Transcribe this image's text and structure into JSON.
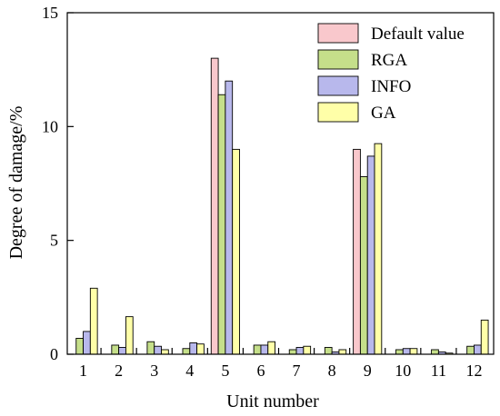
{
  "chart_data": {
    "type": "bar",
    "xlabel": "Unit number",
    "ylabel": "Degree of damage/%",
    "ylim": [
      0,
      15
    ],
    "yticks": [
      0,
      5,
      10,
      15
    ],
    "categories": [
      "1",
      "2",
      "3",
      "4",
      "5",
      "6",
      "7",
      "8",
      "9",
      "10",
      "11",
      "12"
    ],
    "series": [
      {
        "name": "Default value",
        "color": "#f9c8cc",
        "values": [
          0,
          0,
          0,
          0,
          13,
          0,
          0,
          0,
          9,
          0,
          0,
          0
        ]
      },
      {
        "name": "RGA",
        "color": "#c5df8a",
        "values": [
          0.7,
          0.4,
          0.55,
          0.25,
          11.4,
          0.4,
          0.2,
          0.3,
          7.8,
          0.2,
          0.2,
          0.35
        ]
      },
      {
        "name": "INFO",
        "color": "#b8b8ec",
        "values": [
          1.0,
          0.3,
          0.35,
          0.5,
          12.0,
          0.4,
          0.3,
          0.1,
          8.7,
          0.25,
          0.1,
          0.4
        ]
      },
      {
        "name": "GA",
        "color": "#ffffa8",
        "values": [
          2.9,
          1.65,
          0.2,
          0.45,
          9.0,
          0.55,
          0.35,
          0.2,
          9.25,
          0.25,
          0.05,
          1.5
        ]
      }
    ],
    "legend_position": "top-right",
    "grid": false
  }
}
